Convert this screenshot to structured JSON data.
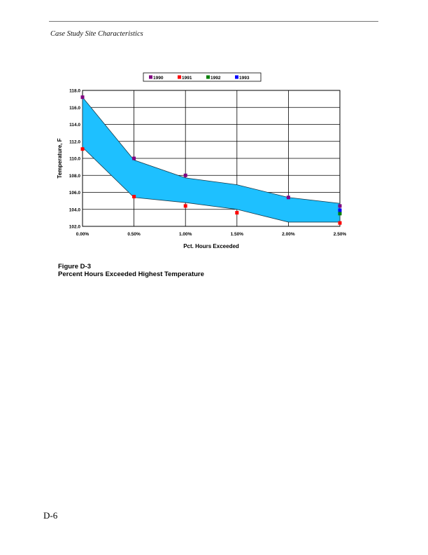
{
  "page": {
    "header": "Case Study Site Characteristics",
    "figure_number": "Figure D-3",
    "figure_title": "Percent Hours Exceeded Highest Temperature",
    "page_number": "D-6"
  },
  "chart_data": {
    "type": "area",
    "title": "",
    "xlabel": "Pct. Hours Exceeded",
    "ylabel": "Temperature, F",
    "x": [
      0,
      0.5,
      1.0,
      1.5,
      2.0,
      2.5
    ],
    "x_tick_labels": [
      "0.00%",
      "0.50%",
      "1.00%",
      "1.50%",
      "2.00%",
      "2.50%"
    ],
    "y_ticks": [
      102,
      104,
      106,
      108,
      110,
      112,
      114,
      116,
      118
    ],
    "y_tick_labels": [
      "102.0",
      "104.0",
      "106.0",
      "108.0",
      "110.0",
      "112.0",
      "114.0",
      "116.0",
      "118.0"
    ],
    "xlim": [
      0,
      2.5
    ],
    "ylim": [
      102,
      118
    ],
    "grid": true,
    "legend_position": "top",
    "band": {
      "upper": [
        117.2,
        109.8,
        107.7,
        106.9,
        105.4,
        104.7
      ],
      "lower": [
        111.3,
        105.4,
        104.8,
        104.0,
        102.5,
        102.5
      ],
      "color": "#1EC0FF"
    },
    "series": [
      {
        "name": "1990",
        "color": "#800080",
        "points": [
          [
            0,
            117.2
          ],
          [
            0.5,
            110.0
          ],
          [
            1.0,
            108.0
          ],
          [
            2.0,
            105.4
          ],
          [
            2.5,
            104.4
          ]
        ]
      },
      {
        "name": "1991",
        "color": "#FF0000",
        "points": [
          [
            0,
            111.1
          ],
          [
            0.5,
            105.5
          ],
          [
            1.0,
            104.4
          ],
          [
            1.5,
            103.6
          ],
          [
            2.5,
            102.4
          ]
        ]
      },
      {
        "name": "1992",
        "color": "#008000",
        "points": [
          [
            2.5,
            103.5
          ]
        ]
      },
      {
        "name": "1993",
        "color": "#0000FF",
        "points": [
          [
            2.5,
            103.9
          ]
        ]
      }
    ]
  }
}
